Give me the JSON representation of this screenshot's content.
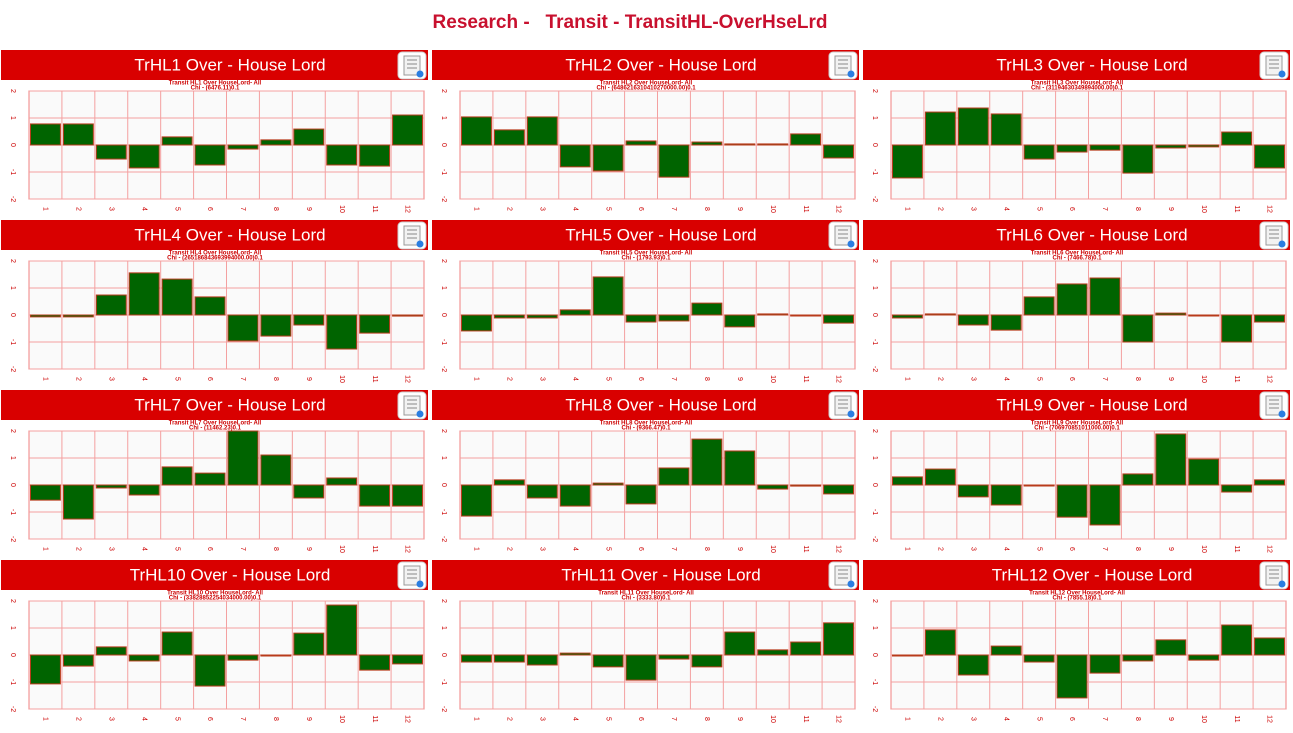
{
  "header": {
    "title": "Research -   Transit - TransitHL-OverHseLrd"
  },
  "chart_data": [
    {
      "type": "bar",
      "title": "TrHL1 Over - House Lord",
      "subtitle": "Transit HL1 Over HouseLord- All",
      "note": "Chi - (6476.11)0.1",
      "categories": [
        "1",
        "2",
        "3",
        "4",
        "5",
        "6",
        "7",
        "8",
        "9",
        "10",
        "11",
        "12"
      ],
      "values": [
        0.78,
        0.78,
        -0.52,
        -0.85,
        0.3,
        -0.74,
        -0.15,
        0.19,
        0.59,
        -0.74,
        -0.78,
        1.11
      ],
      "color": "#006400",
      "ylim": [
        -2,
        2
      ],
      "yticks": [
        -2,
        -1,
        0,
        1,
        2
      ],
      "grid": true
    },
    {
      "type": "bar",
      "title": "TrHL2 Over - House Lord",
      "subtitle": "Transit HL2 Over HouseLord- All",
      "note": "Chi - (6486216310410270000.00)0.1",
      "categories": [
        "1",
        "2",
        "3",
        "4",
        "5",
        "6",
        "7",
        "8",
        "9",
        "10",
        "11",
        "12"
      ],
      "values": [
        1.04,
        0.56,
        1.04,
        -0.81,
        -0.96,
        0.15,
        -1.19,
        0.11,
        0.04,
        0.04,
        0.41,
        -0.48
      ],
      "color": "#006400",
      "ylim": [
        -2,
        2
      ],
      "yticks": [
        -2,
        -1,
        0,
        1,
        2
      ],
      "grid": true
    },
    {
      "type": "bar",
      "title": "TrHL3 Over - House Lord",
      "subtitle": "Transit HL3 Over HouseLord- All",
      "note": "Chi - (31194630349894000.00)0.1",
      "categories": [
        "1",
        "2",
        "3",
        "4",
        "5",
        "6",
        "7",
        "8",
        "9",
        "10",
        "11",
        "12"
      ],
      "values": [
        -1.22,
        1.22,
        1.37,
        1.15,
        -0.52,
        -0.26,
        -0.19,
        -1.04,
        -0.11,
        -0.07,
        0.48,
        -0.85
      ],
      "color": "#006400",
      "ylim": [
        -2,
        2
      ],
      "yticks": [
        -2,
        -1,
        0,
        1,
        2
      ],
      "grid": true
    },
    {
      "type": "bar",
      "title": "TrHL4 Over - House Lord",
      "subtitle": "Transit HL4 Over HouseLord- All",
      "note": "Chi - (265186843693994000.00)0.1",
      "categories": [
        "1",
        "2",
        "3",
        "4",
        "5",
        "6",
        "7",
        "8",
        "9",
        "10",
        "11",
        "12"
      ],
      "values": [
        -0.07,
        -0.07,
        0.74,
        1.56,
        1.33,
        0.67,
        -0.96,
        -0.78,
        -0.37,
        -1.26,
        -0.67,
        -0.04
      ],
      "color": "#006400",
      "ylim": [
        -2,
        2
      ],
      "yticks": [
        -2,
        -1,
        0,
        1,
        2
      ],
      "grid": true
    },
    {
      "type": "bar",
      "title": "TrHL5 Over - House Lord",
      "subtitle": "Transit HL5 Over HouseLord- All",
      "note": "Chi - (1793.93)0.1",
      "categories": [
        "1",
        "2",
        "3",
        "4",
        "5",
        "6",
        "7",
        "8",
        "9",
        "10",
        "11",
        "12"
      ],
      "values": [
        -0.59,
        -0.11,
        -0.11,
        0.19,
        1.41,
        -0.26,
        -0.22,
        0.44,
        -0.44,
        0.04,
        0.0,
        -0.3
      ],
      "color": "#006400",
      "ylim": [
        -2,
        2
      ],
      "yticks": [
        -2,
        -1,
        0,
        1,
        2
      ],
      "grid": true
    },
    {
      "type": "bar",
      "title": "TrHL6 Over - House Lord",
      "subtitle": "Transit HL6 Over HouseLord- All",
      "note": "Chi - (7466.78)0.1",
      "categories": [
        "1",
        "2",
        "3",
        "4",
        "5",
        "6",
        "7",
        "8",
        "9",
        "10",
        "11",
        "12"
      ],
      "values": [
        -0.11,
        0.04,
        -0.37,
        -0.56,
        0.67,
        1.15,
        1.37,
        -1.0,
        0.07,
        -0.02,
        -1.0,
        -0.26
      ],
      "color": "#006400",
      "ylim": [
        -2,
        2
      ],
      "yticks": [
        -2,
        -1,
        0,
        1,
        2
      ],
      "grid": true
    },
    {
      "type": "bar",
      "title": "TrHL7 Over - House Lord",
      "subtitle": "Transit HL7 Over HouseLord- All",
      "note": "Chi - (11462.23)0.1",
      "categories": [
        "1",
        "2",
        "3",
        "4",
        "5",
        "6",
        "7",
        "8",
        "9",
        "10",
        "11",
        "12"
      ],
      "values": [
        -0.56,
        -1.26,
        -0.11,
        -0.37,
        0.67,
        0.44,
        2.0,
        1.11,
        -0.48,
        0.26,
        -0.78,
        -0.78
      ],
      "color": "#006400",
      "ylim": [
        -2,
        2
      ],
      "yticks": [
        -2,
        -1,
        0,
        1,
        2
      ],
      "grid": true
    },
    {
      "type": "bar",
      "title": "TrHL8 Over - House Lord",
      "subtitle": "Transit HL8 Over HouseLord- All",
      "note": "Chi - (9366.47)0.1",
      "categories": [
        "1",
        "2",
        "3",
        "4",
        "5",
        "6",
        "7",
        "8",
        "9",
        "10",
        "11",
        "12"
      ],
      "values": [
        -1.15,
        0.19,
        -0.48,
        -0.78,
        0.07,
        -0.7,
        0.63,
        1.7,
        1.26,
        -0.15,
        -0.04,
        -0.33
      ],
      "color": "#006400",
      "ylim": [
        -2,
        2
      ],
      "yticks": [
        -2,
        -1,
        0,
        1,
        2
      ],
      "grid": true
    },
    {
      "type": "bar",
      "title": "TrHL9 Over - House Lord",
      "subtitle": "Transit HL9 Over HouseLord- All",
      "note": "Chi - (706970851011000.00)0.1",
      "categories": [
        "1",
        "2",
        "3",
        "4",
        "5",
        "6",
        "7",
        "8",
        "9",
        "10",
        "11",
        "12"
      ],
      "values": [
        0.3,
        0.59,
        -0.44,
        -0.74,
        0.0,
        -1.19,
        -1.48,
        0.41,
        1.89,
        0.96,
        -0.26,
        0.19
      ],
      "color": "#006400",
      "ylim": [
        -2,
        2
      ],
      "yticks": [
        -2,
        -1,
        0,
        1,
        2
      ],
      "grid": true
    },
    {
      "type": "bar",
      "title": "TrHL10 Over - House Lord",
      "subtitle": "Transit HL10 Over HouseLord- All",
      "note": "Chi - (33828852254034000.00)0.1",
      "categories": [
        "1",
        "2",
        "3",
        "4",
        "5",
        "6",
        "7",
        "8",
        "9",
        "10",
        "11",
        "12"
      ],
      "values": [
        -1.07,
        -0.41,
        0.3,
        -0.22,
        0.85,
        -1.15,
        -0.19,
        -0.03,
        0.81,
        1.85,
        -0.56,
        -0.33
      ],
      "color": "#006400",
      "ylim": [
        -2,
        2
      ],
      "yticks": [
        -2,
        -1,
        0,
        1,
        2
      ],
      "grid": true
    },
    {
      "type": "bar",
      "title": "TrHL11 Over - House Lord",
      "subtitle": "Transit HL11 Over HouseLord- All",
      "note": "Chi - (3333.80)0.1",
      "categories": [
        "1",
        "2",
        "3",
        "4",
        "5",
        "6",
        "7",
        "8",
        "9",
        "10",
        "11",
        "12"
      ],
      "values": [
        -0.26,
        -0.26,
        -0.37,
        0.07,
        -0.44,
        -0.93,
        -0.15,
        -0.44,
        0.85,
        0.19,
        0.48,
        1.19
      ],
      "color": "#006400",
      "ylim": [
        -2,
        2
      ],
      "yticks": [
        -2,
        -1,
        0,
        1,
        2
      ],
      "grid": true
    },
    {
      "type": "bar",
      "title": "TrHL12 Over - House Lord",
      "subtitle": "Transit HL12 Over HouseLord- All",
      "note": "Chi - (7855.18)0.1",
      "categories": [
        "1",
        "2",
        "3",
        "4",
        "5",
        "6",
        "7",
        "8",
        "9",
        "10",
        "11",
        "12"
      ],
      "values": [
        0.0,
        0.93,
        -0.74,
        0.33,
        -0.26,
        -1.59,
        -0.67,
        -0.22,
        0.56,
        -0.19,
        1.11,
        0.63
      ],
      "color": "#006400",
      "ylim": [
        -2,
        2
      ],
      "yticks": [
        -2,
        -1,
        0,
        1,
        2
      ],
      "grid": true
    }
  ]
}
